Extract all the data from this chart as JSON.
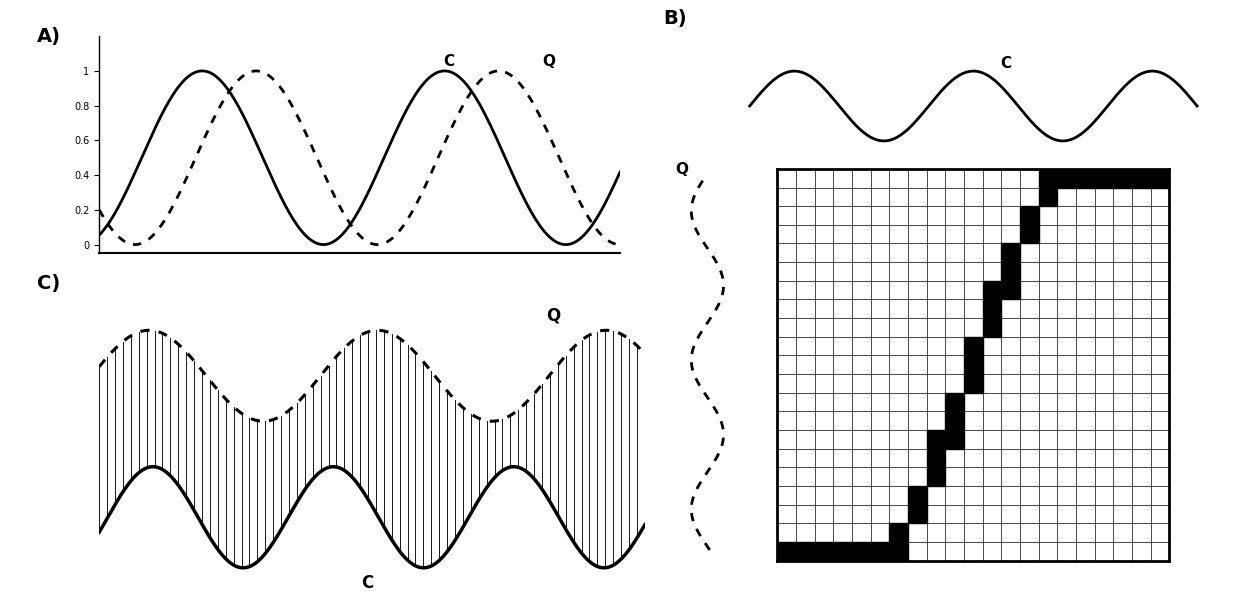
{
  "fig_width": 12.4,
  "fig_height": 6.03,
  "bg_color": "#ffffff",
  "panel_A": {
    "label": "A)",
    "C_label": "C",
    "Q_label": "Q",
    "yticks": [
      0,
      0.2,
      0.4,
      0.6,
      0.8,
      1
    ],
    "ylim": [
      -0.05,
      1.2
    ],
    "xlim": [
      0,
      10
    ]
  },
  "panel_B": {
    "label": "B)",
    "C_label": "C",
    "Q_label": "Q",
    "grid_n": 21
  },
  "panel_C": {
    "label": "C)",
    "C_label": "C",
    "Q_label": "Q"
  }
}
